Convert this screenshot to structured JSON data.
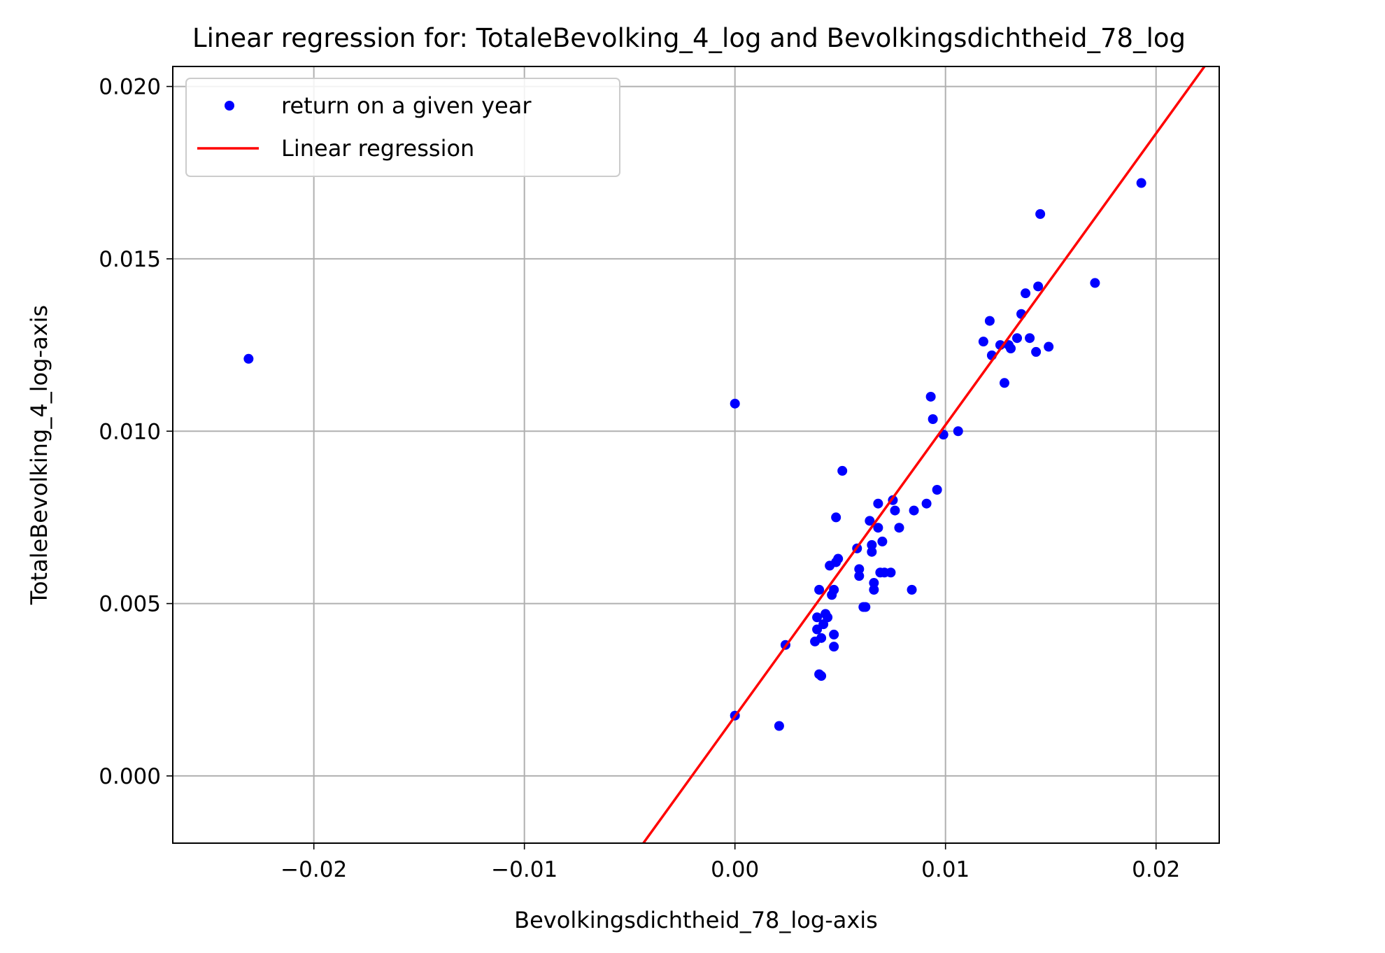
{
  "chart_data": {
    "type": "scatter",
    "title": "Linear regression for: TotaleBevolking_4_log and Bevolkingsdichtheid_78_log",
    "xlabel": "Bevolkingsdichtheid_78_log-axis",
    "ylabel": "TotaleBevolking_4_log-axis",
    "xlim": [
      -0.0267,
      0.023
    ],
    "ylim": [
      -0.00195,
      0.02058
    ],
    "xticks": [
      -0.02,
      -0.01,
      0.0,
      0.01,
      0.02
    ],
    "xtick_labels": [
      "−0.02",
      "−0.01",
      "0.00",
      "0.01",
      "0.02"
    ],
    "yticks": [
      0.0,
      0.005,
      0.01,
      0.015,
      0.02
    ],
    "ytick_labels": [
      "0.000",
      "0.005",
      "0.010",
      "0.015",
      "0.020"
    ],
    "grid": true,
    "legend_position": "upper-left",
    "series": [
      {
        "name": "return on a given year",
        "kind": "scatter",
        "color": "#0000ff",
        "points": [
          [
            -0.0231,
            0.0121
          ],
          [
            0.0,
            0.0108
          ],
          [
            0.0,
            0.00175
          ],
          [
            0.0021,
            0.00145
          ],
          [
            0.0024,
            0.0038
          ],
          [
            0.0038,
            0.0039
          ],
          [
            0.0039,
            0.0046
          ],
          [
            0.0039,
            0.00425
          ],
          [
            0.004,
            0.0054
          ],
          [
            0.004,
            0.00295
          ],
          [
            0.0041,
            0.0029
          ],
          [
            0.0041,
            0.004
          ],
          [
            0.0042,
            0.0044
          ],
          [
            0.0043,
            0.0047
          ],
          [
            0.0044,
            0.0046
          ],
          [
            0.0045,
            0.0061
          ],
          [
            0.0046,
            0.00525
          ],
          [
            0.0047,
            0.0054
          ],
          [
            0.0047,
            0.0041
          ],
          [
            0.0047,
            0.00375
          ],
          [
            0.0048,
            0.0075
          ],
          [
            0.0048,
            0.0062
          ],
          [
            0.0049,
            0.0063
          ],
          [
            0.0051,
            0.00885
          ],
          [
            0.0058,
            0.0066
          ],
          [
            0.0059,
            0.0058
          ],
          [
            0.0059,
            0.006
          ],
          [
            0.0061,
            0.0049
          ],
          [
            0.0062,
            0.0049
          ],
          [
            0.0064,
            0.0074
          ],
          [
            0.0065,
            0.0065
          ],
          [
            0.0065,
            0.0067
          ],
          [
            0.0066,
            0.0056
          ],
          [
            0.0066,
            0.0054
          ],
          [
            0.0068,
            0.0079
          ],
          [
            0.0068,
            0.0072
          ],
          [
            0.0069,
            0.0059
          ],
          [
            0.007,
            0.0068
          ],
          [
            0.0071,
            0.0059
          ],
          [
            0.0074,
            0.0059
          ],
          [
            0.0075,
            0.008
          ],
          [
            0.0076,
            0.0077
          ],
          [
            0.0078,
            0.0072
          ],
          [
            0.0084,
            0.0054
          ],
          [
            0.0085,
            0.0077
          ],
          [
            0.0091,
            0.0079
          ],
          [
            0.0093,
            0.011
          ],
          [
            0.0094,
            0.01035
          ],
          [
            0.0096,
            0.0083
          ],
          [
            0.0099,
            0.0099
          ],
          [
            0.0106,
            0.01
          ],
          [
            0.0118,
            0.0126
          ],
          [
            0.0121,
            0.0132
          ],
          [
            0.0122,
            0.0122
          ],
          [
            0.0126,
            0.0125
          ],
          [
            0.0128,
            0.0114
          ],
          [
            0.013,
            0.0125
          ],
          [
            0.0131,
            0.0124
          ],
          [
            0.0134,
            0.0127
          ],
          [
            0.0136,
            0.0134
          ],
          [
            0.0138,
            0.014
          ],
          [
            0.014,
            0.0127
          ],
          [
            0.0143,
            0.0123
          ],
          [
            0.0144,
            0.0142
          ],
          [
            0.0145,
            0.0163
          ],
          [
            0.0149,
            0.01245
          ],
          [
            0.0171,
            0.0143
          ],
          [
            0.0193,
            0.0172
          ]
        ]
      },
      {
        "name": "Linear regression",
        "kind": "line",
        "color": "#ff0000",
        "x": [
          -0.00435,
          0.0223
        ],
        "y": [
          -0.00195,
          0.02058
        ]
      }
    ]
  }
}
